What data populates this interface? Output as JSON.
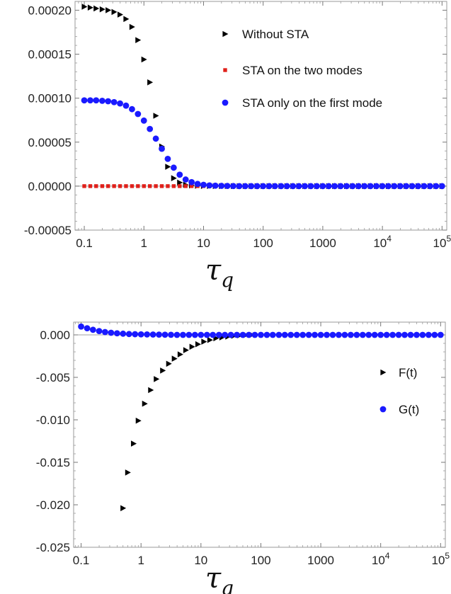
{
  "chart_data": [
    {
      "type": "scatter",
      "title": "",
      "xlabel": "τ",
      "xlabel_sub": "q",
      "ylabel": "",
      "xscale": "log",
      "xlim": [
        0.07,
        120000
      ],
      "ylim": [
        -5e-05,
        0.00021
      ],
      "grid": false,
      "legend_position": "top-right",
      "x_ticks": [
        {
          "value": 0.1,
          "label": "0.1"
        },
        {
          "value": 1,
          "label": "1"
        },
        {
          "value": 10,
          "label": "10"
        },
        {
          "value": 100,
          "label": "100"
        },
        {
          "value": 1000,
          "label": "1000"
        },
        {
          "value": 10000,
          "label": "10",
          "exp": "4"
        },
        {
          "value": 100000,
          "label": "10",
          "exp": "5"
        }
      ],
      "y_ticks": [
        {
          "value": -5e-05,
          "label": "-0.00005"
        },
        {
          "value": 0,
          "label": "0.00000"
        },
        {
          "value": 5e-05,
          "label": "0.00005"
        },
        {
          "value": 0.0001,
          "label": "0.00010"
        },
        {
          "value": 0.00015,
          "label": "0.00015"
        },
        {
          "value": 0.0002,
          "label": "0.00020"
        }
      ],
      "series": [
        {
          "name": "Without STA",
          "marker": "triangle-right",
          "color": "#000000",
          "x": [
            0.1,
            0.126,
            0.158,
            0.2,
            0.251,
            0.316,
            0.398,
            0.501,
            0.631,
            0.794,
            1,
            1.259,
            1.585,
            1.995,
            2.512,
            3.162,
            3.981,
            5.012,
            6.31,
            7.943,
            10,
            12.6,
            15.8,
            20,
            25.1,
            31.6,
            39.8,
            50.1,
            63.1,
            79.4,
            100,
            126,
            158,
            200,
            251,
            316,
            398,
            501,
            631,
            794,
            1000,
            1259,
            1585,
            1995,
            2512,
            3162,
            3981,
            5012,
            6310,
            7943,
            10000,
            12589,
            15849,
            19953,
            25119,
            31623,
            39811,
            50119,
            63096,
            79433,
            100000
          ],
          "values": [
            0.000204,
            0.000203,
            0.000202,
            0.000201,
            0.0002,
            0.000198,
            0.000195,
            0.00019,
            0.000181,
            0.000166,
            0.000144,
            0.000118,
            8e-05,
            4.5e-05,
            2.2e-05,
            9e-06,
            4e-06,
            1.5e-06,
            8e-07,
            4e-07,
            2e-07,
            1e-07,
            5e-08,
            0,
            0,
            0,
            0,
            0,
            0,
            0,
            0,
            0,
            0,
            0,
            0,
            0,
            0,
            0,
            0,
            0,
            0,
            0,
            0,
            0,
            0,
            0,
            0,
            0,
            0,
            0,
            0,
            0,
            0,
            0,
            0,
            0,
            0,
            0,
            0,
            0,
            0
          ]
        },
        {
          "name": "STA on the two modes",
          "marker": "square",
          "color": "#e0201a",
          "x": [
            0.1,
            0.126,
            0.158,
            0.2,
            0.251,
            0.316,
            0.398,
            0.501,
            0.631,
            0.794,
            1,
            1.259,
            1.585,
            1.995,
            2.512,
            3.162,
            3.981,
            5.012,
            6.31,
            7.943,
            10
          ],
          "values": [
            0,
            0,
            0,
            0,
            0,
            0,
            0,
            0,
            0,
            0,
            0,
            0,
            0,
            0,
            0,
            0,
            0,
            0,
            0,
            0,
            0
          ]
        },
        {
          "name": "STA only on the first mode",
          "marker": "circle",
          "color": "#1a1aff",
          "x": [
            0.1,
            0.126,
            0.158,
            0.2,
            0.251,
            0.316,
            0.398,
            0.501,
            0.631,
            0.794,
            1,
            1.259,
            1.585,
            1.995,
            2.512,
            3.162,
            3.981,
            5.012,
            6.31,
            7.943,
            10,
            12.6,
            15.8,
            20,
            25.1,
            31.6,
            39.8,
            50.1,
            63.1,
            79.4,
            100,
            126,
            158,
            200,
            251,
            316,
            398,
            501,
            631,
            794,
            1000,
            1259,
            1585,
            1995,
            2512,
            3162,
            3981,
            5012,
            6310,
            7943,
            10000,
            12589,
            15849,
            19953,
            25119,
            31623,
            39811,
            50119,
            63096,
            79433,
            100000
          ],
          "values": [
            9.75e-05,
            9.75e-05,
            9.75e-05,
            9.7e-05,
            9.65e-05,
            9.55e-05,
            9.4e-05,
            9.15e-05,
            8.75e-05,
            8.2e-05,
            7.45e-05,
            6.5e-05,
            5.4e-05,
            4.25e-05,
            3.1e-05,
            2.1e-05,
            1.3e-05,
            7.5e-06,
            4.5e-06,
            2.5e-06,
            1.5e-06,
            8e-07,
            5e-07,
            3e-07,
            2e-07,
            1e-07,
            0,
            0,
            0,
            0,
            0,
            0,
            0,
            0,
            0,
            0,
            0,
            0,
            0,
            0,
            0,
            0,
            0,
            0,
            0,
            0,
            0,
            0,
            0,
            0,
            0,
            0,
            0,
            0,
            0,
            0,
            0,
            0,
            0,
            0,
            0
          ]
        }
      ]
    },
    {
      "type": "scatter",
      "title": "",
      "xlabel": "τ",
      "xlabel_sub": "q",
      "ylabel": "",
      "xscale": "log",
      "xlim": [
        0.075,
        120000
      ],
      "ylim": [
        -0.025,
        0.0015
      ],
      "grid": false,
      "legend_position": "right",
      "x_ticks": [
        {
          "value": 0.1,
          "label": "0.1"
        },
        {
          "value": 1,
          "label": "1"
        },
        {
          "value": 10,
          "label": "10"
        },
        {
          "value": 100,
          "label": "100"
        },
        {
          "value": 1000,
          "label": "1000"
        },
        {
          "value": 10000,
          "label": "10",
          "exp": "4"
        },
        {
          "value": 100000,
          "label": "10",
          "exp": "5"
        }
      ],
      "y_ticks": [
        {
          "value": -0.025,
          "label": "-0.025"
        },
        {
          "value": -0.02,
          "label": "-0.020"
        },
        {
          "value": -0.015,
          "label": "-0.015"
        },
        {
          "value": -0.01,
          "label": "-0.010"
        },
        {
          "value": -0.005,
          "label": "-0.005"
        },
        {
          "value": 0,
          "label": "0.000"
        }
      ],
      "series": [
        {
          "name": "F(t)",
          "marker": "triangle-right",
          "color": "#000000",
          "x": [
            0.5,
            0.6,
            0.75,
            0.9,
            1.15,
            1.45,
            1.8,
            2.3,
            2.9,
            3.6,
            4.5,
            5.6,
            7.1,
            8.9,
            11.2,
            14.1,
            17.8,
            22.4,
            28.2,
            35.5,
            44.7,
            56.2,
            70.8
          ],
          "values": [
            -0.0204,
            -0.0162,
            -0.0128,
            -0.0101,
            -0.0081,
            -0.0065,
            -0.0052,
            -0.0042,
            -0.0034,
            -0.0028,
            -0.0023,
            -0.0018,
            -0.0014,
            -0.0011,
            -0.0008,
            -0.0006,
            -0.0004,
            -0.0003,
            -0.0002,
            -0.0001,
            -5e-05,
            -2e-05,
            0
          ]
        },
        {
          "name": "G(t)",
          "marker": "circle",
          "color": "#1a1aff",
          "x": [
            0.1,
            0.126,
            0.158,
            0.2,
            0.251,
            0.316,
            0.398,
            0.501,
            0.631,
            0.794,
            1,
            1.259,
            1.585,
            1.995,
            2.512,
            3.162,
            3.981,
            5.012,
            6.31,
            7.943,
            10,
            12.6,
            15.8,
            20,
            25.1,
            31.6,
            39.8,
            50.1,
            63.1,
            79.4,
            100,
            126,
            158,
            200,
            251,
            316,
            398,
            501,
            631,
            794,
            1000,
            1259,
            1585,
            1995,
            2512,
            3162,
            3981,
            5012,
            6310,
            7943,
            10000,
            12589,
            15849,
            19953,
            25119,
            31623,
            39811,
            50119,
            63096,
            79433,
            100000
          ],
          "values": [
            0.00098,
            0.00078,
            0.0006,
            0.00045,
            0.00033,
            0.00025,
            0.00019,
            0.00014,
            0.0001,
            8e-05,
            6e-05,
            5e-05,
            4e-05,
            3e-05,
            2e-05,
            1e-05,
            0,
            0,
            0,
            0,
            0,
            0,
            0,
            0,
            0,
            0,
            0,
            0,
            0,
            0,
            0,
            0,
            0,
            0,
            0,
            0,
            0,
            0,
            0,
            0,
            0,
            0,
            0,
            0,
            0,
            0,
            0,
            0,
            0,
            0,
            0,
            0,
            0,
            0,
            0,
            0,
            0,
            0,
            0,
            0,
            0
          ]
        }
      ]
    }
  ]
}
